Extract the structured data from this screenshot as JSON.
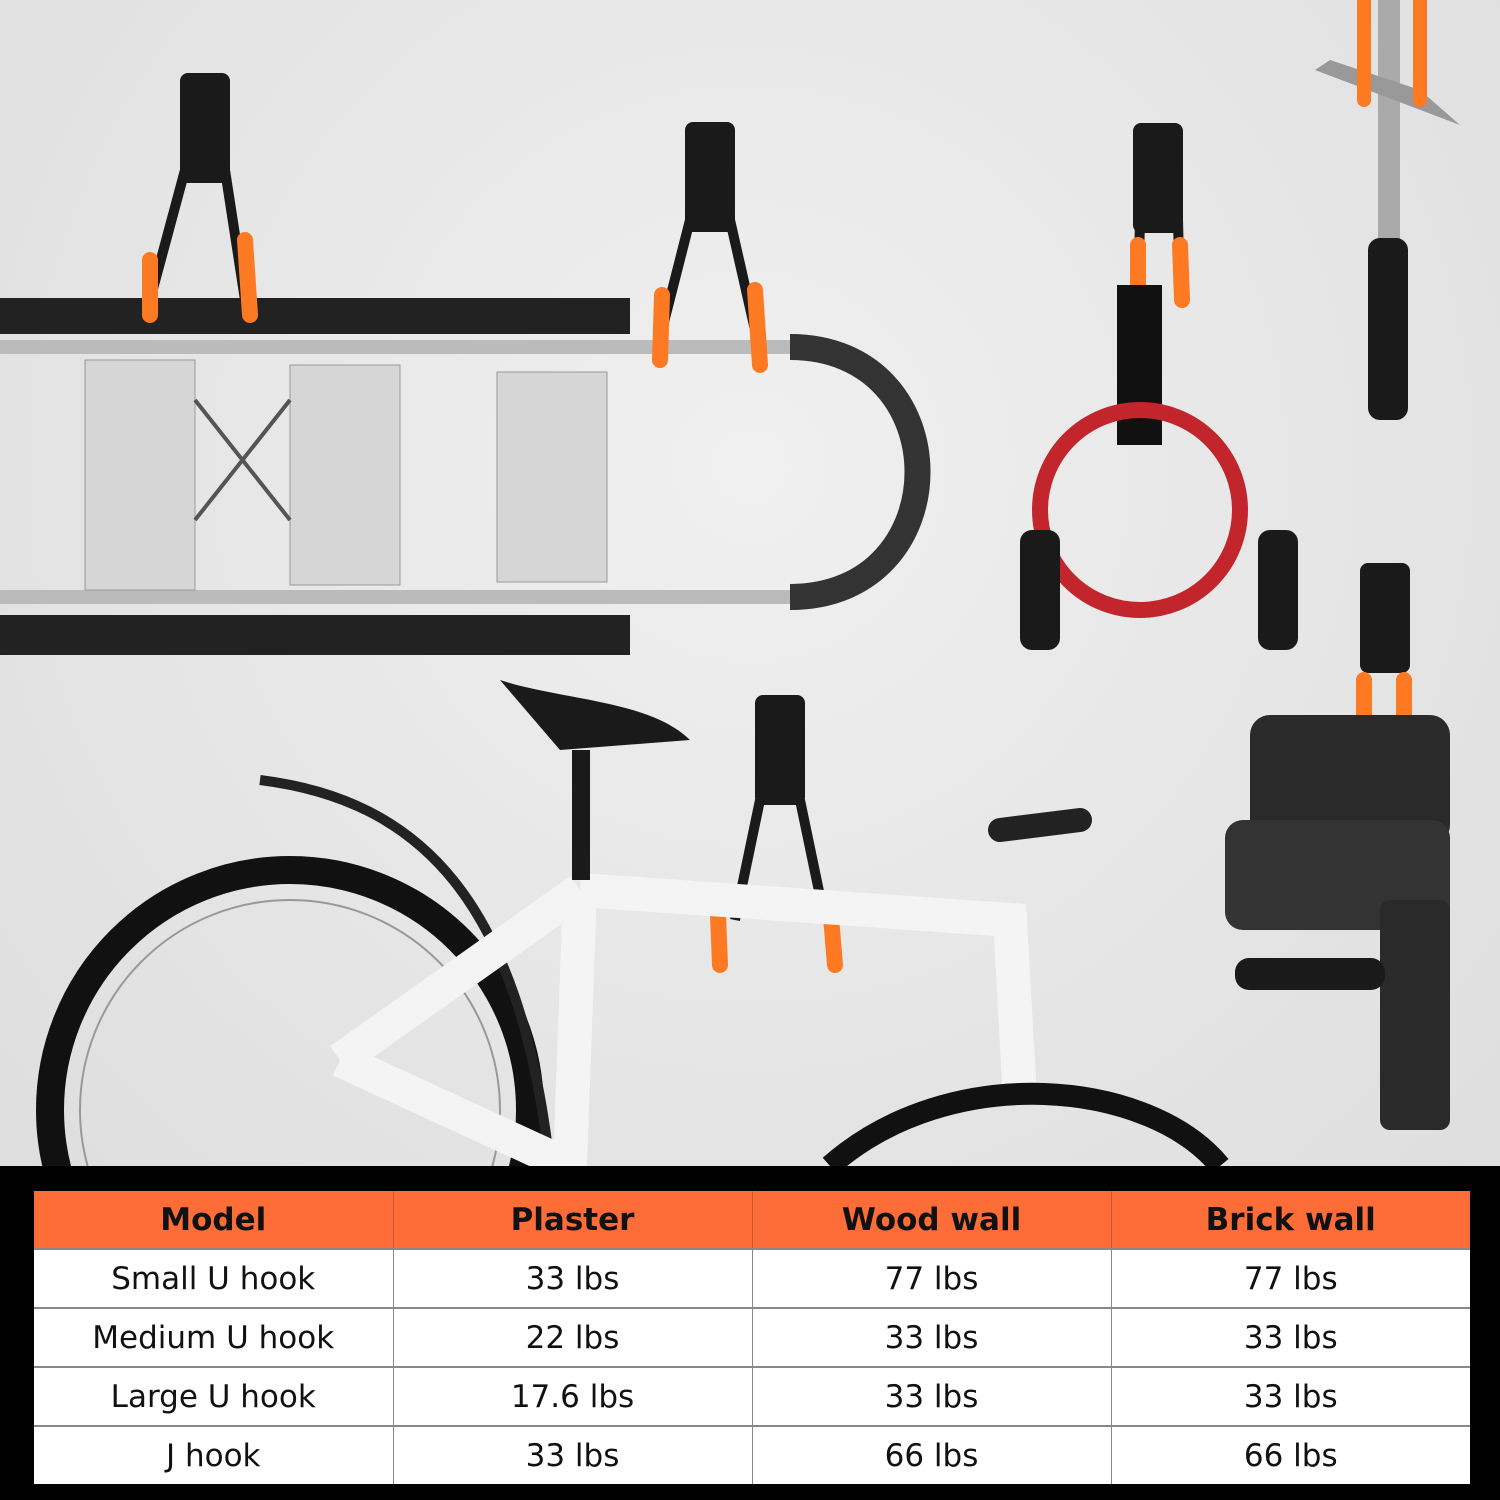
{
  "colors": {
    "header": "#fe6c37",
    "hook_tip": "#fe7a22",
    "hook": "#1a1a1a",
    "band": "#000000"
  },
  "scene": {
    "items": [
      "ladder",
      "extension-cord",
      "hammer",
      "bicycle",
      "rotary-hammer-drill"
    ]
  },
  "table": {
    "headers": [
      "Model",
      "Plaster",
      "Wood wall",
      "Brick wall"
    ],
    "rows": [
      [
        "Small U hook",
        "33 lbs",
        "77 lbs",
        "77 lbs"
      ],
      [
        "Medium U hook",
        "22 lbs",
        "33 lbs",
        "33 lbs"
      ],
      [
        "Large U hook",
        "17.6 lbs",
        "33 lbs",
        "33 lbs"
      ],
      [
        "J hook",
        "33 lbs",
        "66 lbs",
        "66 lbs"
      ]
    ]
  }
}
